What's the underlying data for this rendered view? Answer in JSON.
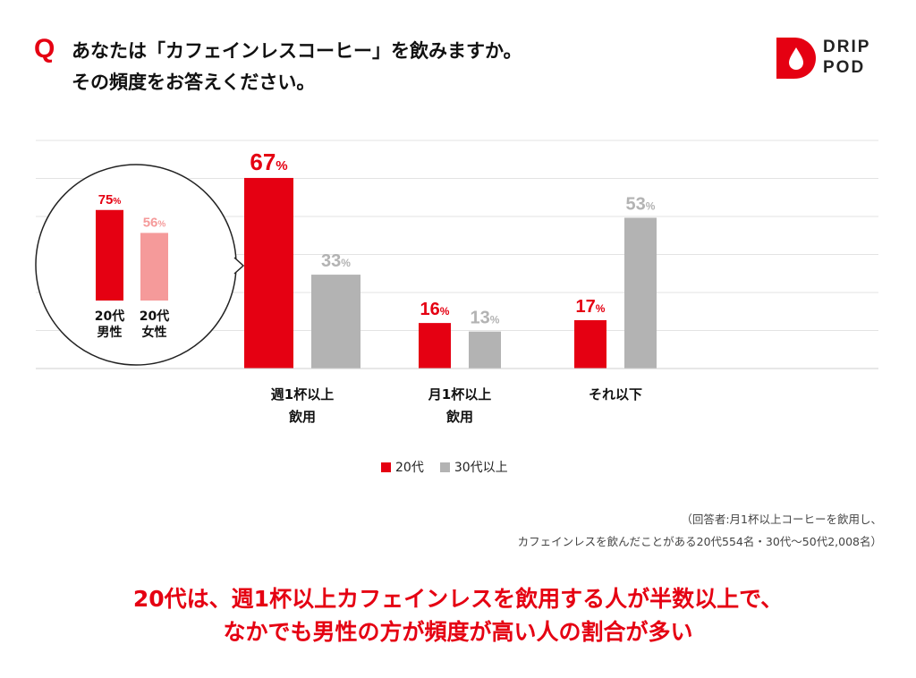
{
  "question": {
    "mark": "Q",
    "line1": "あなたは「カフェインレスコーヒー」を飲みますか。",
    "line2": "その頻度をお答えください。"
  },
  "logo": {
    "line1": "DRIP",
    "line2": "POD",
    "color": "#e50012"
  },
  "colors": {
    "accent": "#e50012",
    "gray": "#b3b3b3",
    "pink": "#f59a9a"
  },
  "chart_data": [
    {
      "type": "bar",
      "categories": [
        [
          "週1杯以上",
          "飲用"
        ],
        [
          "月1杯以上",
          "飲用"
        ],
        [
          "それ以下"
        ]
      ],
      "series": [
        {
          "name": "20代",
          "values": [
            67,
            16,
            17
          ],
          "color": "#e50012"
        },
        {
          "name": "30代以上",
          "values": [
            33,
            13,
            53
          ],
          "color": "#b3b3b3"
        }
      ],
      "value_suffix": "%",
      "ylim": [
        0,
        100
      ],
      "grid": true,
      "legend_position": "bottom-center"
    },
    {
      "type": "bar",
      "categories": [
        [
          "20代",
          "男性"
        ],
        [
          "20代",
          "女性"
        ]
      ],
      "values": [
        75,
        56
      ],
      "colors": [
        "#e50012",
        "#f59a9a"
      ],
      "value_suffix": "%",
      "ylim": [
        0,
        100
      ]
    }
  ],
  "legend": [
    {
      "label": "20代",
      "color": "#e50012"
    },
    {
      "label": "30代以上",
      "color": "#b3b3b3"
    }
  ],
  "note": {
    "line1": "（回答者:月1杯以上コーヒーを飲用し、",
    "line2": "カフェインレスを飲んだことがある20代554名・30代〜50代2,008名）"
  },
  "conclusion": {
    "line1": "20代は、週1杯以上カフェインレスを飲用する人が半数以上で、",
    "line2": "なかでも男性の方が頻度が高い人の割合が多い"
  }
}
